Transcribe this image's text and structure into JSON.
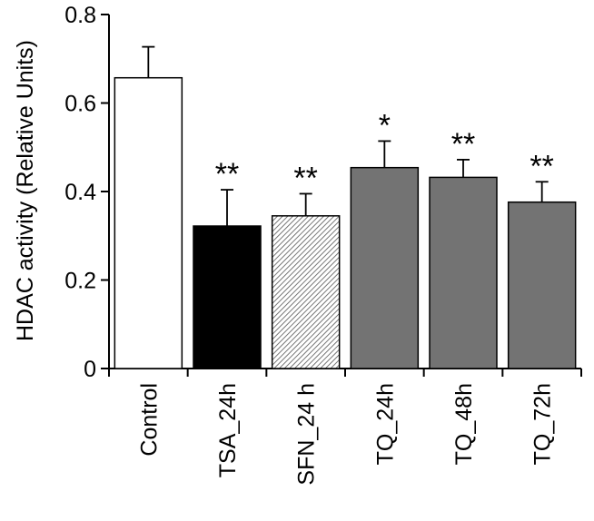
{
  "chart_data": {
    "type": "bar",
    "title": "",
    "xlabel": "",
    "ylabel": "HDAC activity (Relative Units)",
    "ylim": [
      0,
      0.8
    ],
    "yticks": [
      0,
      0.2,
      0.4,
      0.6,
      0.8
    ],
    "ytick_labels": [
      "0",
      "0.2",
      "0.4",
      "0.6",
      "0.8"
    ],
    "categories": [
      "Control",
      "TSA_24h",
      "SFN_24 h",
      "TQ_24h",
      "TQ_48h",
      "TQ_72h"
    ],
    "values": [
      0.657,
      0.322,
      0.345,
      0.454,
      0.432,
      0.376
    ],
    "errors": [
      0.07,
      0.082,
      0.05,
      0.06,
      0.04,
      0.046
    ],
    "significance": [
      "",
      "**",
      "**",
      "*",
      "**",
      "**"
    ],
    "bar_fills": [
      "white",
      "black",
      "hatched",
      "gray",
      "gray",
      "gray"
    ],
    "colors": {
      "gray": "#737373",
      "black": "#000000",
      "white": "#ffffff",
      "hatch": "#555555"
    },
    "grid": false,
    "legend": "none"
  }
}
